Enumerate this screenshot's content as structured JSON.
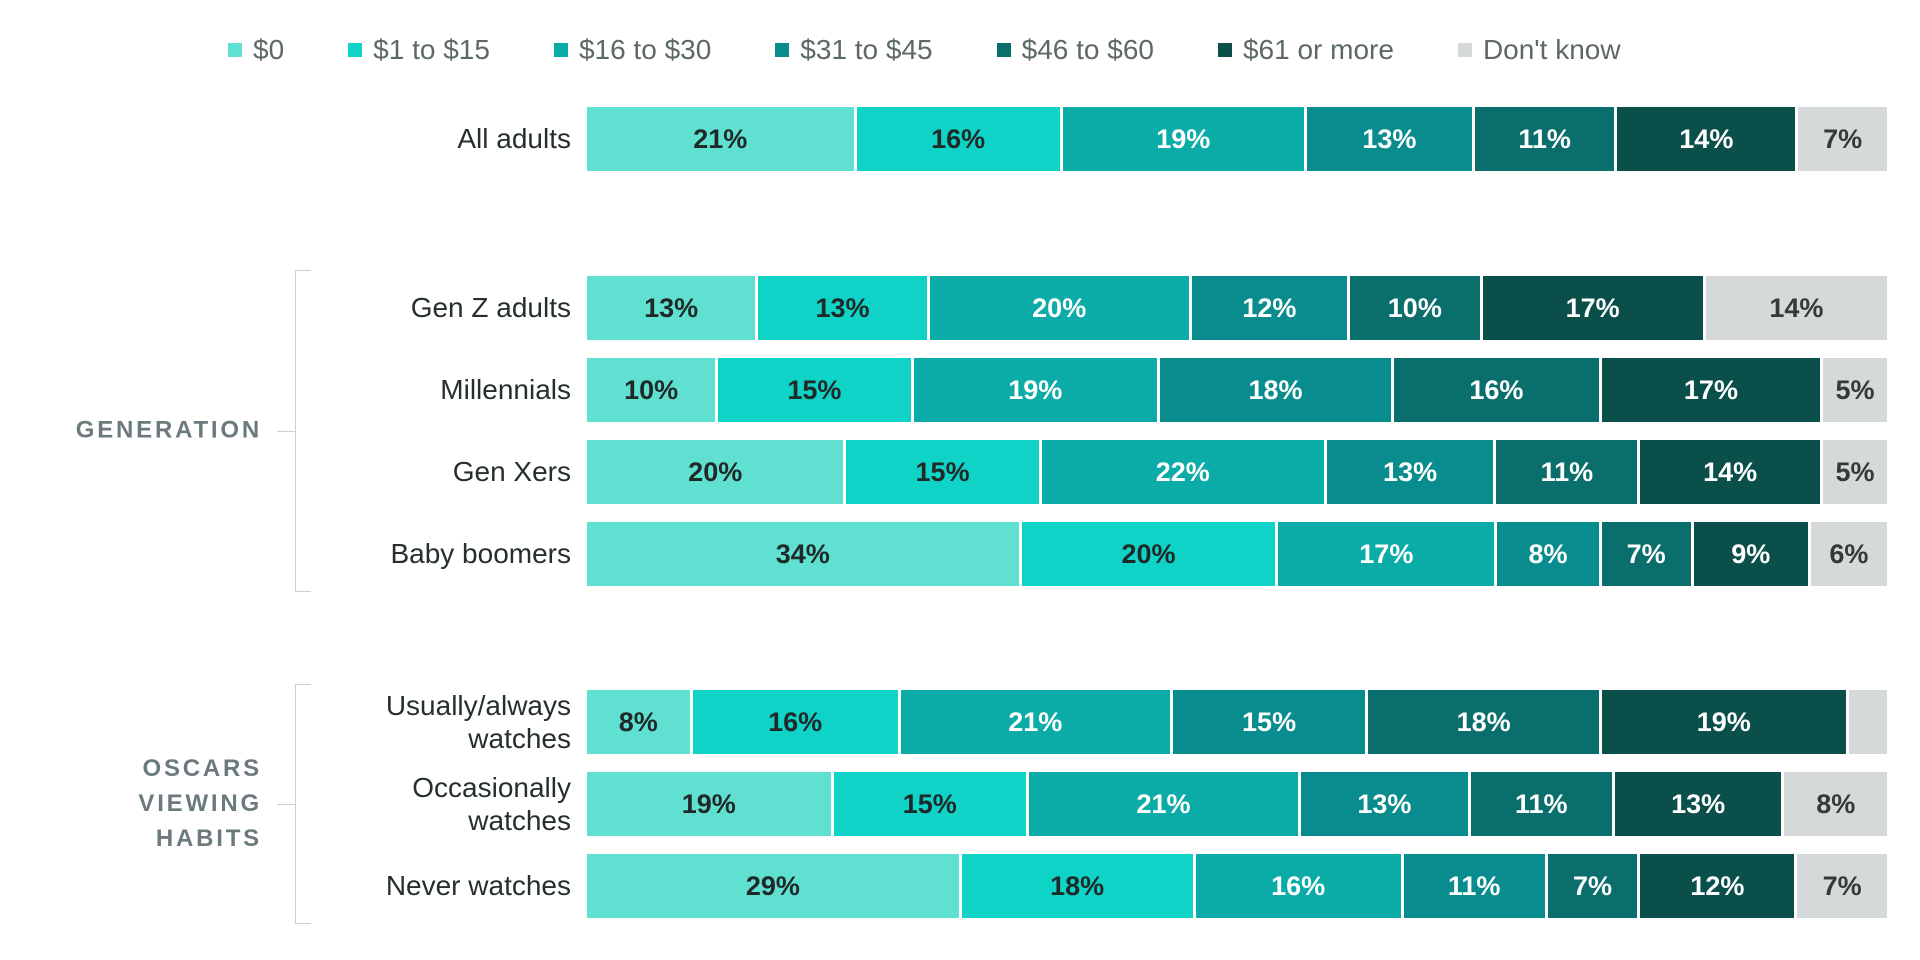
{
  "chart_data": {
    "type": "bar",
    "variant": "horizontal-stacked-percent",
    "legend_position": "top",
    "grid": false,
    "categories": [
      "$0",
      "$1 to $15",
      "$16 to $30",
      "$31 to $45",
      "$46 to $60",
      "$61 or more",
      "Don't know"
    ],
    "segment_colors": [
      "#5fe0d1",
      "#10d3c7",
      "#0baca8",
      "#088c8d",
      "#0a6e6c",
      "#0a4f49",
      "#d5d9d9"
    ],
    "segment_label_colors": [
      "#1e2928",
      "#1e2928",
      "#ffffff",
      "#ffffff",
      "#ffffff",
      "#ffffff",
      "#343a3a"
    ],
    "groups": [
      {
        "label": "",
        "rows": [
          {
            "label": "All adults",
            "values": [
              21,
              16,
              19,
              13,
              11,
              14,
              7
            ],
            "labels": [
              "21%",
              "16%",
              "19%",
              "13%",
              "11%",
              "14%",
              "7%"
            ]
          }
        ]
      },
      {
        "label": "GENERATION",
        "rows": [
          {
            "label": "Gen Z adults",
            "values": [
              13,
              13,
              20,
              12,
              10,
              17,
              14
            ],
            "labels": [
              "13%",
              "13%",
              "20%",
              "12%",
              "10%",
              "17%",
              "14%"
            ]
          },
          {
            "label": "Millennials",
            "values": [
              10,
              15,
              19,
              18,
              16,
              17,
              5
            ],
            "labels": [
              "10%",
              "15%",
              "19%",
              "18%",
              "16%",
              "17%",
              "5%"
            ]
          },
          {
            "label": "Gen Xers",
            "values": [
              20,
              15,
              22,
              13,
              11,
              14,
              5
            ],
            "labels": [
              "20%",
              "15%",
              "22%",
              "13%",
              "11%",
              "14%",
              "5%"
            ]
          },
          {
            "label": "Baby boomers",
            "values": [
              34,
              20,
              17,
              8,
              7,
              9,
              6
            ],
            "labels": [
              "34%",
              "20%",
              "17%",
              "8%",
              "7%",
              "9%",
              "6%"
            ]
          }
        ]
      },
      {
        "label": "OSCARS\nVIEWING\nHABITS",
        "rows": [
          {
            "label": "Usually/always\nwatches",
            "values": [
              8,
              16,
              21,
              15,
              18,
              19,
              3
            ],
            "labels": [
              "8%",
              "16%",
              "21%",
              "15%",
              "18%",
              "19%",
              ""
            ]
          },
          {
            "label": "Occasionally\nwatches",
            "values": [
              19,
              15,
              21,
              13,
              11,
              13,
              8
            ],
            "labels": [
              "19%",
              "15%",
              "21%",
              "13%",
              "11%",
              "13%",
              "8%"
            ]
          },
          {
            "label": "Never watches",
            "values": [
              29,
              18,
              16,
              11,
              7,
              12,
              7
            ],
            "labels": [
              "29%",
              "18%",
              "16%",
              "11%",
              "7%",
              "12%",
              "7%"
            ]
          }
        ]
      }
    ],
    "style": {
      "legend_text_color": "#5d6968",
      "row_label_color": "#262f2f",
      "group_label_color": "#6b7a7d",
      "bracket_color": "#cfcfcf",
      "background": "#ffffff"
    }
  }
}
